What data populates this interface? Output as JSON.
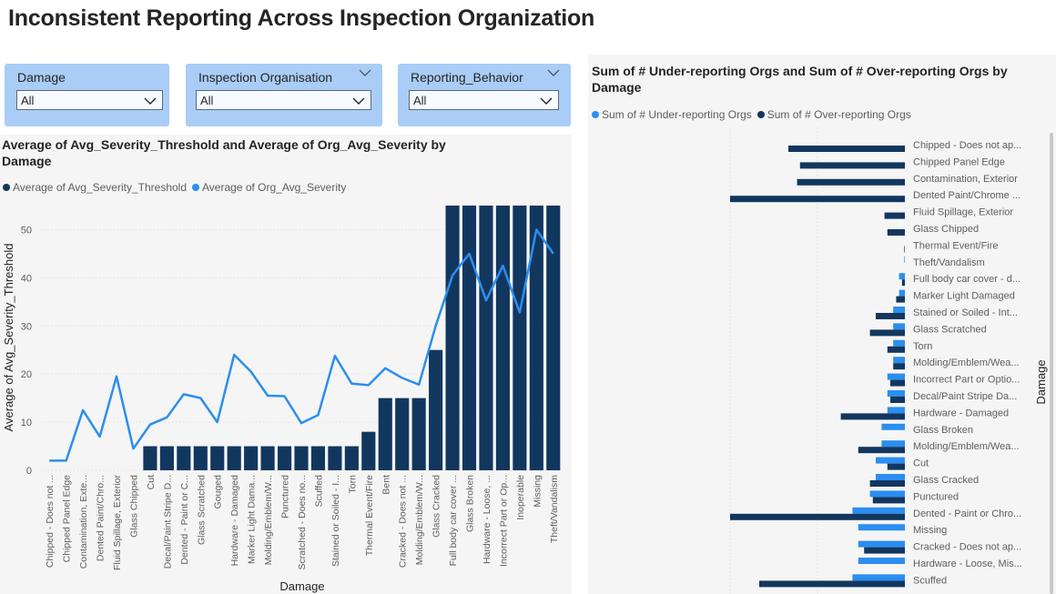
{
  "page": {
    "title": "Inconsistent Reporting Across Inspection Organization"
  },
  "slicers": [
    {
      "label": "Damage",
      "value": "All"
    },
    {
      "label": "Inspection Organisation",
      "value": "All"
    },
    {
      "label": "Reporting_Behavior",
      "value": "All"
    }
  ],
  "left_chart": {
    "title": "Average of Avg_Severity_Threshold and Average of Org_Avg_Severity by Damage",
    "legend": [
      "Average of Avg_Severity_Threshold",
      "Average of Org_Avg_Severity"
    ]
  },
  "right_chart": {
    "title": "Sum of # Under-reporting Orgs and Sum of # Over-reporting Orgs by Damage",
    "legend": [
      "Sum of # Under-reporting Orgs",
      "Sum of # Over-reporting Orgs"
    ]
  },
  "colors": {
    "dark": "#12375f",
    "light": "#2b8ef0",
    "slicer": "#a9cdf7"
  },
  "chart_data": [
    {
      "type": "bar",
      "combo": "bar+line",
      "xlabel": "Damage",
      "ylabel": "Average of Avg_Severity_Threshold",
      "ylim": [
        0,
        55
      ],
      "yticks": [
        0,
        10,
        20,
        30,
        40,
        50
      ],
      "grid": true,
      "legend_position": "top-left",
      "categories": [
        "Chipped - Does not ...",
        "Chipped Panel Edge",
        "Contamination, Exte...",
        "Dented Paint/Chro...",
        "Fluid Spillage, Exterior",
        "Glass Chipped",
        "Cut",
        "Decal/Paint Stripe D...",
        "Dented - Paint or C...",
        "Glass Scratched",
        "Gouged",
        "Hardware - Damaged",
        "Marker Light Dama...",
        "Molding/Emblem/W...",
        "Punctured",
        "Scratched - Does no...",
        "Scuffed",
        "Stained or Soiled - I...",
        "Torn",
        "Thermal Event/Fire",
        "Bent",
        "Cracked - Does not ...",
        "Molding/Emblem/W...",
        "Glass Cracked",
        "Full body car cover ...",
        "Glass Broken",
        "Hardware - Loose, ...",
        "Incorrect Part or Op...",
        "Inoperable",
        "Missing",
        "Theft/Vandalism"
      ],
      "series": [
        {
          "name": "Average of Avg_Severity_Threshold",
          "kind": "bar",
          "values": [
            0,
            0,
            0,
            0,
            0,
            0,
            5,
            5,
            5,
            5,
            5,
            5,
            5,
            5,
            5,
            5,
            5,
            5,
            5,
            8,
            15,
            15,
            15,
            25,
            55,
            55,
            55,
            55,
            55,
            55,
            55
          ]
        },
        {
          "name": "Average of Org_Avg_Severity",
          "kind": "line",
          "values": [
            2,
            2,
            12.5,
            7,
            19.5,
            4.5,
            9.5,
            11,
            15.8,
            15,
            10,
            24,
            20.5,
            15.5,
            15.4,
            9.8,
            11.5,
            23.8,
            18,
            17.7,
            21.2,
            19.2,
            17.8,
            30,
            40.5,
            45,
            35.3,
            42.5,
            32.8,
            50,
            45
          ]
        }
      ]
    },
    {
      "type": "bar",
      "orientation": "horizontal",
      "ylabel": "Damage",
      "legend_position": "top-left",
      "xlim": [
        0,
        45
      ],
      "grid": true,
      "categories": [
        "Chipped - Does not ap...",
        "Chipped Panel Edge",
        "Contamination, Exterior",
        "Dented Paint/Chrome ...",
        "Fluid Spillage, Exterior",
        "Glass Chipped",
        "Thermal Event/Fire",
        "Theft/Vandalism",
        "Full body car cover - d...",
        "Marker Light Damaged",
        "Stained or Soiled - Int...",
        "Glass Scratched",
        "Torn",
        "Molding/Emblem/Wea...",
        "Incorrect Part or Optio...",
        "Decal/Paint Stripe Da...",
        "Hardware - Damaged",
        "Glass Broken",
        "Molding/Emblem/Wea...",
        "Cut",
        "Glass Cracked",
        "Punctured",
        "Dented - Paint or Chro...",
        "Missing",
        "Cracked - Does not ap...",
        "Hardware - Loose, Mis...",
        "Scuffed"
      ],
      "series": [
        {
          "name": "Sum of # Under-reporting Orgs",
          "values": [
            0,
            0,
            0,
            0,
            0,
            0,
            0,
            0.1,
            1,
            1,
            2,
            2,
            2,
            2,
            3,
            3,
            3,
            4,
            4,
            5,
            5,
            6,
            9,
            8,
            8,
            8,
            9
          ]
        },
        {
          "name": "Sum of # Over-reporting Orgs",
          "values": [
            20,
            18,
            18.5,
            30,
            3.5,
            3,
            0.1,
            0,
            0.5,
            1.5,
            5,
            6,
            3,
            2,
            2.5,
            2.5,
            11,
            0,
            8,
            3,
            6,
            5.5,
            30,
            0,
            7,
            0,
            25
          ]
        }
      ]
    }
  ]
}
